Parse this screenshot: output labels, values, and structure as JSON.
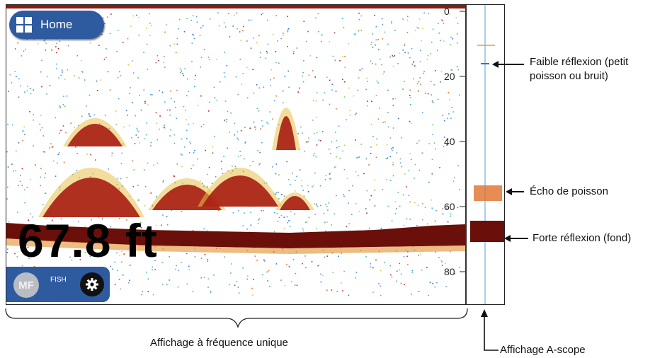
{
  "home": {
    "label": "Home"
  },
  "depth": {
    "value": "67.8 ft"
  },
  "mode": {
    "mf_label": "MF",
    "fish_label": "FISH"
  },
  "scale": {
    "ticks": [
      "0",
      "20",
      "40",
      "60",
      "80"
    ]
  },
  "annotations": {
    "weak_reflection": "Faible réflexion (petit poisson ou bruit)",
    "fish_echo": "Écho de poisson",
    "strong_reflection": "Forte réflexion (fond)",
    "single_frequency": "Affichage à fréquence unique",
    "a_scope": "Affichage A-scope"
  },
  "colors": {
    "button_bg": "#2e5aa0",
    "bottom": "#6b0f0a",
    "water": "#ffffff"
  },
  "icons": {
    "home": "grid-icon",
    "settings": "gear-icon"
  }
}
